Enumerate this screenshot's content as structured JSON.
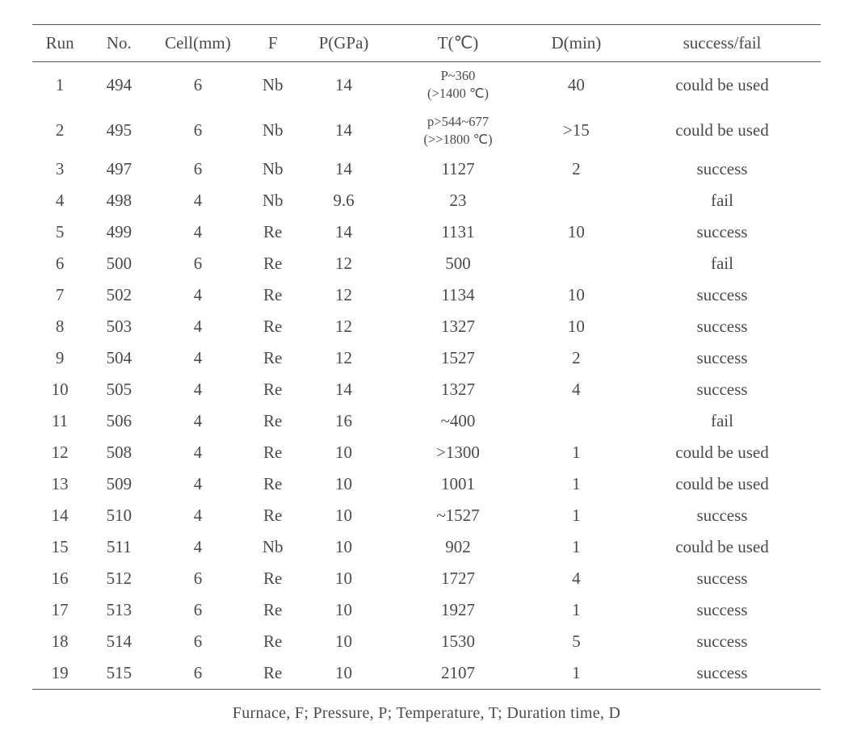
{
  "table": {
    "columns": [
      "Run",
      "No.",
      "Cell(mm)",
      "F",
      "P(GPa)",
      "T(℃)",
      "D(min)",
      "success/fail"
    ],
    "column_keys": [
      "run",
      "no",
      "cell",
      "f",
      "p",
      "t",
      "d",
      "sf"
    ],
    "column_classes": [
      "col-run",
      "col-no",
      "col-cell",
      "col-f",
      "col-p",
      "col-t",
      "col-d",
      "col-sf"
    ],
    "text_color": "#4a4a4a",
    "border_color": "#555555",
    "background_color": "#ffffff",
    "header_fontsize": 21,
    "body_fontsize": 21,
    "multiline_fontsize": 16.5,
    "rows": [
      {
        "run": "1",
        "no": "494",
        "cell": "6",
        "f": "Nb",
        "p": "14",
        "t": "P~360<br>(>1400 ℃)",
        "t_multiline": true,
        "d": "40",
        "sf": "could be used"
      },
      {
        "run": "2",
        "no": "495",
        "cell": "6",
        "f": "Nb",
        "p": "14",
        "t": "p>544~677<br>(>>1800 ℃)",
        "t_multiline": true,
        "d": ">15",
        "sf": "could be used"
      },
      {
        "run": "3",
        "no": "497",
        "cell": "6",
        "f": "Nb",
        "p": "14",
        "t": "1127",
        "d": "2",
        "sf": "success"
      },
      {
        "run": "4",
        "no": "498",
        "cell": "4",
        "f": "Nb",
        "p": "9.6",
        "t": "23",
        "d": "",
        "sf": "fail"
      },
      {
        "run": "5",
        "no": "499",
        "cell": "4",
        "f": "Re",
        "p": "14",
        "t": "1131",
        "d": "10",
        "sf": "success"
      },
      {
        "run": "6",
        "no": "500",
        "cell": "6",
        "f": "Re",
        "p": "12",
        "t": "500",
        "d": "",
        "sf": "fail"
      },
      {
        "run": "7",
        "no": "502",
        "cell": "4",
        "f": "Re",
        "p": "12",
        "t": "1134",
        "d": "10",
        "sf": "success"
      },
      {
        "run": "8",
        "no": "503",
        "cell": "4",
        "f": "Re",
        "p": "12",
        "t": "1327",
        "d": "10",
        "sf": "success"
      },
      {
        "run": "9",
        "no": "504",
        "cell": "4",
        "f": "Re",
        "p": "12",
        "t": "1527",
        "d": "2",
        "sf": "success"
      },
      {
        "run": "10",
        "no": "505",
        "cell": "4",
        "f": "Re",
        "p": "14",
        "t": "1327",
        "d": "4",
        "sf": "success"
      },
      {
        "run": "11",
        "no": "506",
        "cell": "4",
        "f": "Re",
        "p": "16",
        "t": "~400",
        "d": "",
        "sf": "fail"
      },
      {
        "run": "12",
        "no": "508",
        "cell": "4",
        "f": "Re",
        "p": "10",
        "t": ">1300",
        "d": "1",
        "sf": "could be used"
      },
      {
        "run": "13",
        "no": "509",
        "cell": "4",
        "f": "Re",
        "p": "10",
        "t": "1001",
        "d": "1",
        "sf": "could be used"
      },
      {
        "run": "14",
        "no": "510",
        "cell": "4",
        "f": "Re",
        "p": "10",
        "t": "~1527",
        "d": "1",
        "sf": "success"
      },
      {
        "run": "15",
        "no": "511",
        "cell": "4",
        "f": "Nb",
        "p": "10",
        "t": "902",
        "d": "1",
        "sf": "could be used"
      },
      {
        "run": "16",
        "no": "512",
        "cell": "6",
        "f": "Re",
        "p": "10",
        "t": "1727",
        "d": "4",
        "sf": "success"
      },
      {
        "run": "17",
        "no": "513",
        "cell": "6",
        "f": "Re",
        "p": "10",
        "t": "1927",
        "d": "1",
        "sf": "success"
      },
      {
        "run": "18",
        "no": "514",
        "cell": "6",
        "f": "Re",
        "p": "10",
        "t": "1530",
        "d": "5",
        "sf": "success"
      },
      {
        "run": "19",
        "no": "515",
        "cell": "6",
        "f": "Re",
        "p": "10",
        "t": "2107",
        "d": "1",
        "sf": "success"
      }
    ]
  },
  "caption": "Furnace, F; Pressure, P; Temperature, T; Duration time, D"
}
